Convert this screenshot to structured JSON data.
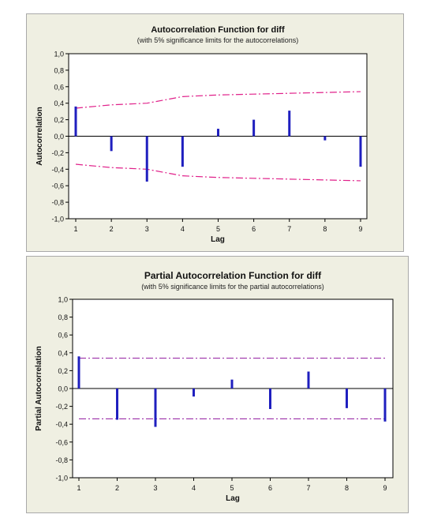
{
  "chart_data": [
    {
      "type": "bar",
      "title": "Autocorrelation Function for diff",
      "subtitle": "(with 5% significance limits for the autocorrelations)",
      "xlabel": "Lag",
      "ylabel": "Autocorrelation",
      "x": [
        1,
        2,
        3,
        4,
        5,
        6,
        7,
        8,
        9
      ],
      "values": [
        0.36,
        -0.18,
        -0.55,
        -0.37,
        0.09,
        0.2,
        0.31,
        -0.05,
        -0.37
      ],
      "ylim": [
        -1.0,
        1.0
      ],
      "yticks": [
        "1,0",
        "0,8",
        "0,6",
        "0,4",
        "0,2",
        "0,0",
        "-0,2",
        "-0,4",
        "-0,6",
        "-0,8",
        "-1,0"
      ],
      "xticks": [
        "1",
        "2",
        "3",
        "4",
        "5",
        "6",
        "7",
        "8",
        "9"
      ],
      "significance_limits": [
        0.34,
        0.38,
        0.4,
        0.48,
        0.5,
        0.51,
        0.52,
        0.53,
        0.54
      ],
      "bar_color": "#1f1fbf",
      "limit_color": "#e0208a"
    },
    {
      "type": "bar",
      "title": "Partial Autocorrelation Function for diff",
      "subtitle": "(with 5% significance limits for the partial autocorrelations)",
      "xlabel": "Lag",
      "ylabel": "Partial Autocorrelation",
      "x": [
        1,
        2,
        3,
        4,
        5,
        6,
        7,
        8,
        9
      ],
      "values": [
        0.36,
        -0.35,
        -0.43,
        -0.09,
        0.1,
        -0.23,
        0.19,
        -0.22,
        -0.37
      ],
      "ylim": [
        -1.0,
        1.0
      ],
      "yticks": [
        "1,0",
        "0,8",
        "0,6",
        "0,4",
        "0,2",
        "0,0",
        "-0,2",
        "-0,4",
        "-0,6",
        "-0,8",
        "-1,0"
      ],
      "xticks": [
        "1",
        "2",
        "3",
        "4",
        "5",
        "6",
        "7",
        "8",
        "9"
      ],
      "significance_limits": [
        0.34,
        0.34,
        0.34,
        0.34,
        0.34,
        0.34,
        0.34,
        0.34,
        0.34
      ],
      "bar_color": "#1f1fbf",
      "limit_color": "#9b30a8"
    }
  ]
}
